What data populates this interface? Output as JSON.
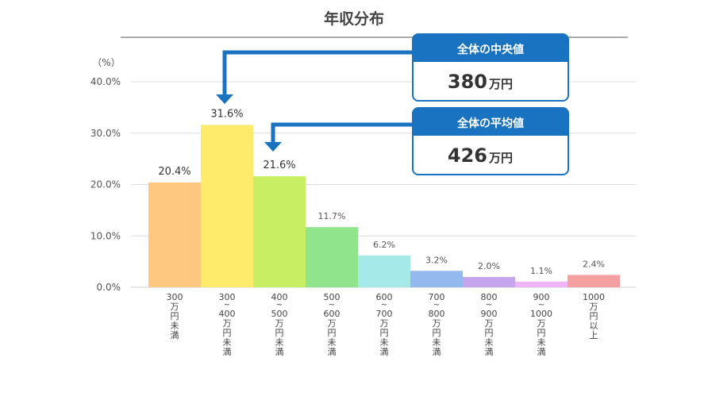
{
  "chart_data": {
    "type": "bar",
    "title": "年収分布",
    "ylabel": "（%）",
    "ylim": [
      0,
      40
    ],
    "yticks": [
      0,
      10,
      20,
      30,
      40
    ],
    "ytick_labels": [
      "0.0%",
      "10.0%",
      "20.0%",
      "30.0%",
      "40.0%"
    ],
    "grid": true,
    "categories": [
      [
        "300",
        "万",
        "円",
        "未",
        "満"
      ],
      [
        "300",
        "~",
        "400",
        "万",
        "円",
        "未",
        "満"
      ],
      [
        "400",
        "~",
        "500",
        "万",
        "円",
        "未",
        "満"
      ],
      [
        "500",
        "~",
        "600",
        "万",
        "円",
        "未",
        "満"
      ],
      [
        "600",
        "~",
        "700",
        "万",
        "円",
        "未",
        "満"
      ],
      [
        "700",
        "~",
        "800",
        "万",
        "円",
        "未",
        "満"
      ],
      [
        "800",
        "~",
        "900",
        "万",
        "円",
        "未",
        "満"
      ],
      [
        "900",
        "~",
        "1000",
        "万",
        "円",
        "未",
        "満"
      ],
      [
        "1000",
        "万",
        "円",
        "以",
        "上"
      ]
    ],
    "values": [
      20.4,
      31.6,
      21.6,
      11.7,
      6.2,
      3.2,
      2.0,
      1.1,
      2.4
    ],
    "value_labels": [
      "20.4%",
      "31.6%",
      "21.6%",
      "11.7%",
      "6.2%",
      "3.2%",
      "2.0%",
      "1.1%",
      "2.4%"
    ],
    "colors": [
      "#FFC880",
      "#FFEB6B",
      "#C8EE64",
      "#90E48C",
      "#A5EAE8",
      "#94B9EE",
      "#C4A5EE",
      "#F0B3F6",
      "#F4A0A0"
    ]
  },
  "callouts": [
    {
      "title": "全体の中央値",
      "value": "380",
      "unit": "万円",
      "points_to_category": 1
    },
    {
      "title": "全体の平均値",
      "value": "426",
      "unit": "万円",
      "points_to_category": 2
    }
  ],
  "accent_color": "#1A73C0"
}
